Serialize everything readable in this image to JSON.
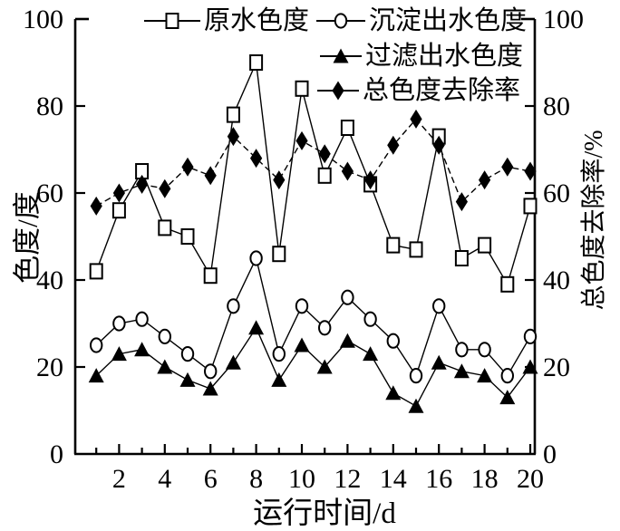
{
  "figure": {
    "background": "#ffffff",
    "ink_color": "#000000"
  },
  "chart_data": {
    "type": "line",
    "x": [
      1,
      2,
      3,
      4,
      5,
      6,
      7,
      8,
      9,
      10,
      11,
      12,
      13,
      14,
      15,
      16,
      17,
      18,
      19,
      20
    ],
    "xlabel": "运行时间/d",
    "ylabel_left": "色度/度",
    "ylabel_right": "总色度去除率/%",
    "ylim_left": [
      0,
      100
    ],
    "ylim_right": [
      0,
      100
    ],
    "yticks": [
      0,
      20,
      40,
      60,
      80,
      100
    ],
    "xticks": [
      2,
      4,
      6,
      8,
      10,
      12,
      14,
      16,
      18,
      20
    ],
    "grid": false,
    "legend_position": "top",
    "series": [
      {
        "name": "原水色度",
        "axis": "left",
        "marker": "square-open",
        "line": "solid",
        "color": "#000000",
        "values": [
          42,
          56,
          65,
          52,
          50,
          41,
          78,
          90,
          46,
          84,
          64,
          75,
          62,
          48,
          47,
          73,
          45,
          48,
          39,
          57
        ]
      },
      {
        "name": "沉淀出水色度",
        "axis": "left",
        "marker": "circle-open",
        "line": "solid",
        "color": "#000000",
        "values": [
          25,
          30,
          31,
          27,
          23,
          19,
          34,
          45,
          23,
          34,
          29,
          36,
          31,
          26,
          18,
          34,
          24,
          24,
          18,
          27
        ]
      },
      {
        "name": "过滤出水色度",
        "axis": "left",
        "marker": "triangle-filled",
        "line": "solid",
        "color": "#000000",
        "values": [
          18,
          23,
          24,
          20,
          17,
          15,
          21,
          29,
          17,
          25,
          20,
          26,
          23,
          14,
          11,
          21,
          19,
          18,
          13,
          20
        ]
      },
      {
        "name": "总色度去除率",
        "axis": "right",
        "marker": "diamond-filled",
        "line": "dashed",
        "color": "#000000",
        "values": [
          57,
          60,
          62,
          61,
          66,
          64,
          73,
          68,
          63,
          72,
          69,
          65,
          63,
          71,
          77,
          71,
          58,
          63,
          66,
          65
        ]
      }
    ]
  }
}
